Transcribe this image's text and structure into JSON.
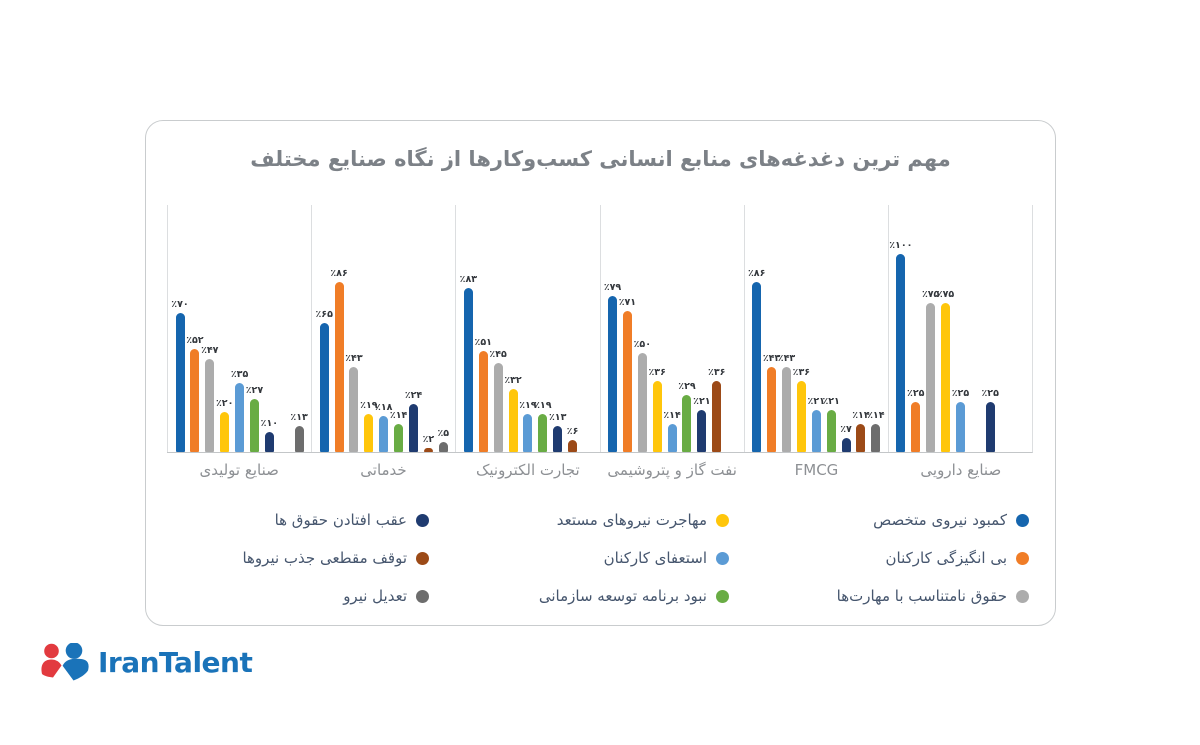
{
  "logo": {
    "text": "IranTalent",
    "blue": "#1a73b9",
    "red": "#e23a3f"
  },
  "chart_data": {
    "type": "bar",
    "title": "مهم ترین دغدغه‌های منابع انسانی کسب‌وکارها از نگاه صنایع مختلف",
    "categories": [
      "صنایع تولیدی",
      "خدماتی",
      "تجارت الکترونیک",
      "نفت گاز و پتروشیمی",
      "FMCG",
      "صنایع دارویی"
    ],
    "series": [
      {
        "name": "کمبود نیروی متخصص",
        "color": "#1565ae",
        "values": [
          70,
          65,
          83,
          79,
          86,
          100
        ]
      },
      {
        "name": "بی انگیزگی کارکنان",
        "color": "#f07d27",
        "values": [
          52,
          86,
          51,
          71,
          43,
          25
        ]
      },
      {
        "name": "حقوق نامتناسب با مهارت‌ها",
        "color": "#acacac",
        "values": [
          47,
          43,
          45,
          50,
          43,
          75
        ]
      },
      {
        "name": "مهاجرت نیروهای مستعد",
        "color": "#ffc60b",
        "values": [
          20,
          19,
          32,
          36,
          36,
          75
        ]
      },
      {
        "name": "استعفای کارکنان",
        "color": "#5b9bd5",
        "values": [
          35,
          18,
          19,
          14,
          21,
          25
        ]
      },
      {
        "name": "نبود برنامه توسعه سازمانی",
        "color": "#69ac44",
        "values": [
          27,
          14,
          19,
          29,
          21,
          null
        ]
      },
      {
        "name": "عقب افتادن حقوق ها",
        "color": "#1f3b70",
        "values": [
          10,
          24,
          13,
          21,
          7,
          25
        ]
      },
      {
        "name": "توقف مقطعی جذب نیروها",
        "color": "#9c4a17",
        "values": [
          null,
          2,
          6,
          36,
          14,
          null
        ]
      },
      {
        "name": "تعدیل نیرو",
        "color": "#6d6d6d",
        "values": [
          13,
          5,
          null,
          null,
          14,
          null
        ]
      }
    ],
    "ylim": [
      0,
      100
    ],
    "unit": "%",
    "value_prefix": "٪",
    "value_digits": "persian",
    "grid": "vertical-panel-dividers",
    "legend_position": "bottom",
    "legend_columns": 3
  }
}
